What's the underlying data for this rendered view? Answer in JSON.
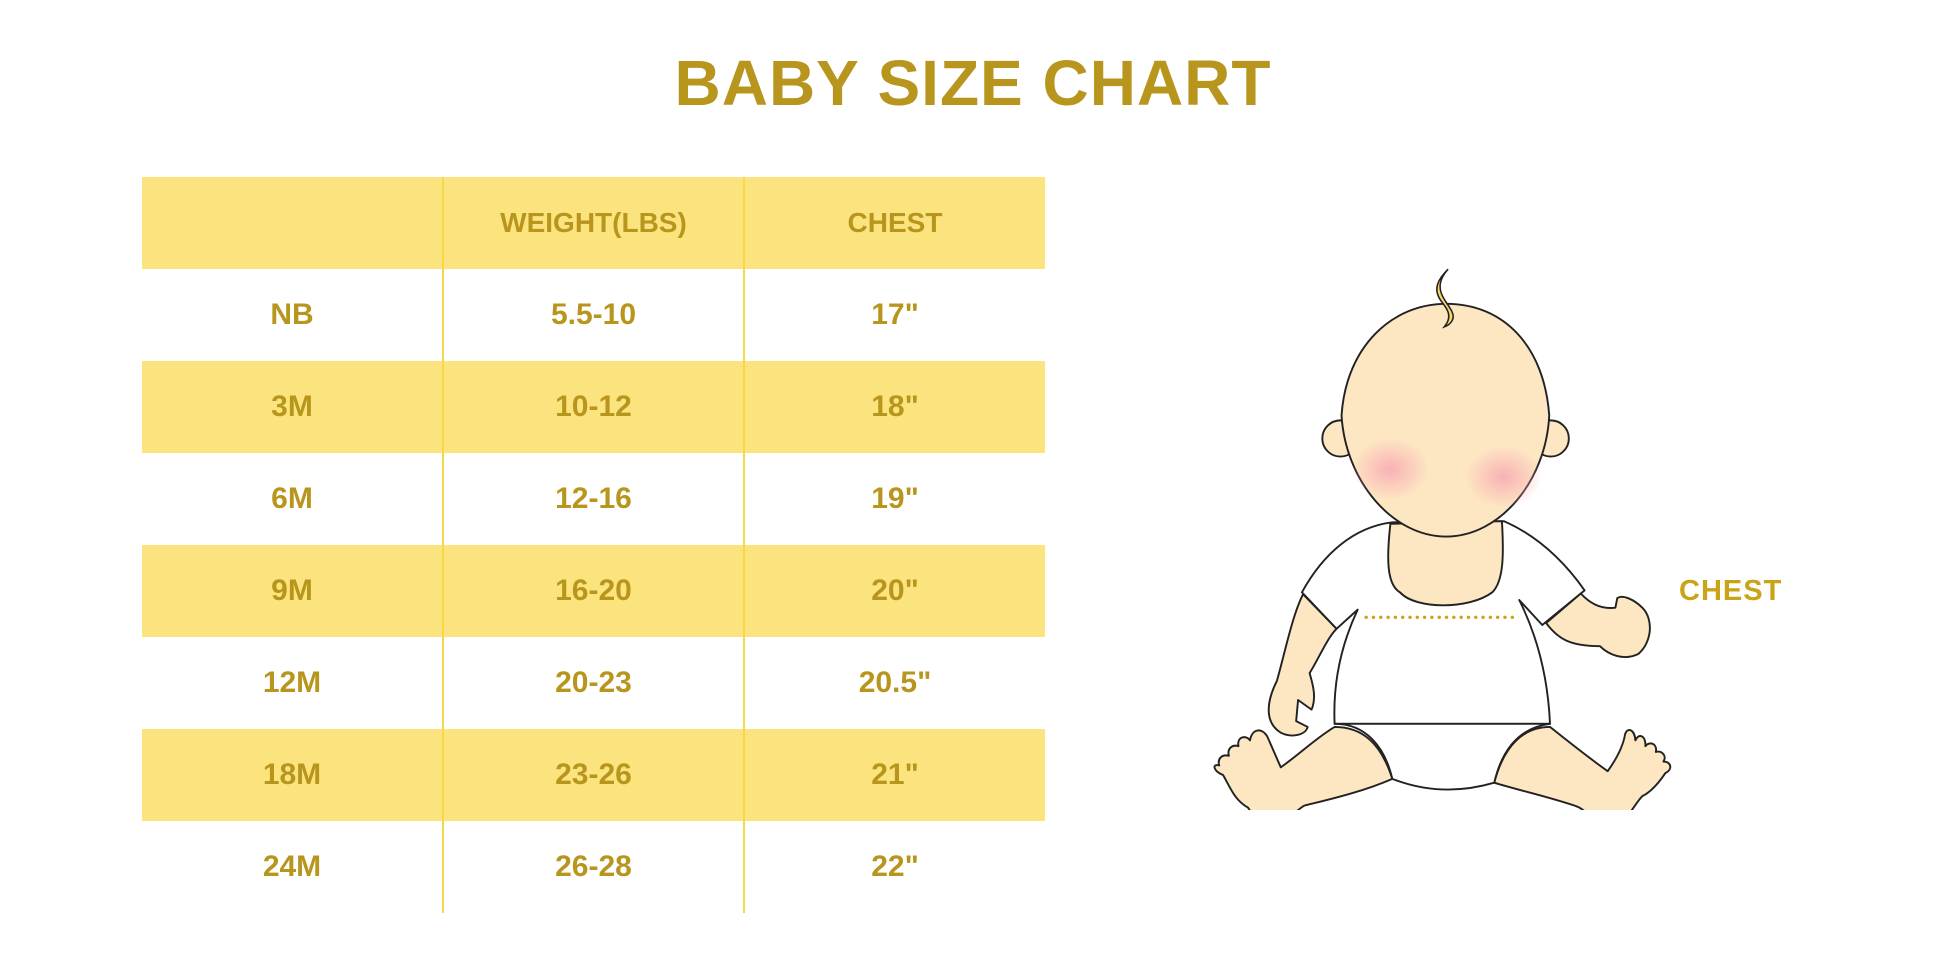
{
  "title": "BABY SIZE CHART",
  "chart_data": {
    "type": "table",
    "title": "BABY SIZE CHART",
    "columns": [
      "",
      "WEIGHT(LBS)",
      "CHEST"
    ],
    "rows": [
      {
        "size": "NB",
        "weight": "5.5-10",
        "chest": "17\""
      },
      {
        "size": "3M",
        "weight": "10-12",
        "chest": "18\""
      },
      {
        "size": "6M",
        "weight": "12-16",
        "chest": "19\""
      },
      {
        "size": "9M",
        "weight": "16-20",
        "chest": "20\""
      },
      {
        "size": "12M",
        "weight": "20-23",
        "chest": "20.5\""
      },
      {
        "size": "18M",
        "weight": "23-26",
        "chest": "21\""
      },
      {
        "size": "24M",
        "weight": "26-28",
        "chest": "22\""
      }
    ]
  },
  "illustration": {
    "label": "CHEST",
    "icon": "baby-measurement-illustration"
  },
  "colors": {
    "text": "#B8961E",
    "band": "#FBE47E",
    "divider": "#F7D84A",
    "skin": "#FDE6C2",
    "cheek": "#F9B3B8",
    "hair": "#F7D76A"
  }
}
